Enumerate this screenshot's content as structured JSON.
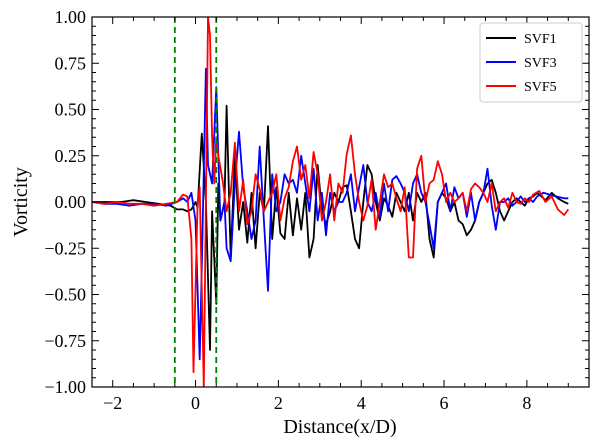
{
  "chart_data": {
    "type": "line",
    "title": "",
    "xlabel": "Distance(x/D)",
    "ylabel": "Vorticity",
    "xlim": [
      -2.5,
      9.5
    ],
    "ylim": [
      -1.0,
      1.0
    ],
    "xticks": [
      -2,
      0,
      2,
      4,
      6,
      8
    ],
    "xtick_labels": [
      "−2",
      "0",
      "2",
      "4",
      "6",
      "8"
    ],
    "yticks": [
      -1.0,
      -0.75,
      -0.5,
      -0.25,
      0.0,
      0.25,
      0.5,
      0.75,
      1.0
    ],
    "ytick_labels": [
      "−1.00",
      "−0.75",
      "−0.50",
      "−0.25",
      "0.00",
      "0.25",
      "0.50",
      "0.75",
      "1.00"
    ],
    "grid": false,
    "legend_position": "top-right",
    "vlines": [
      {
        "x": -0.5,
        "color": "#008000",
        "style": "dashed"
      },
      {
        "x": 0.5,
        "color": "#008000",
        "style": "dashed"
      }
    ],
    "series": [
      {
        "name": "SVF1",
        "color": "#000000",
        "points": [
          [
            -2.5,
            0.0
          ],
          [
            -2.2,
            0.0
          ],
          [
            -1.8,
            0.0
          ],
          [
            -1.5,
            0.01
          ],
          [
            -1.2,
            0.0
          ],
          [
            -0.9,
            -0.01
          ],
          [
            -0.6,
            -0.02
          ],
          [
            -0.45,
            -0.04
          ],
          [
            -0.3,
            -0.04
          ],
          [
            -0.2,
            -0.05
          ],
          [
            -0.1,
            -0.04
          ],
          [
            0.0,
            0.0
          ],
          [
            0.05,
            -0.03
          ],
          [
            0.15,
            0.37
          ],
          [
            0.25,
            0.0
          ],
          [
            0.35,
            -0.8
          ],
          [
            0.4,
            -0.05
          ],
          [
            0.5,
            -0.55
          ],
          [
            0.55,
            0.1
          ],
          [
            0.6,
            -0.1
          ],
          [
            0.7,
            0.0
          ],
          [
            0.75,
            0.52
          ],
          [
            0.85,
            -0.3
          ],
          [
            0.95,
            0.25
          ],
          [
            1.05,
            -0.15
          ],
          [
            1.15,
            0.0
          ],
          [
            1.25,
            -0.22
          ],
          [
            1.35,
            0.05
          ],
          [
            1.45,
            -0.25
          ],
          [
            1.55,
            0.05
          ],
          [
            1.65,
            -0.05
          ],
          [
            1.75,
            0.41
          ],
          [
            1.85,
            -0.2
          ],
          [
            1.95,
            0.08
          ],
          [
            2.05,
            -0.17
          ],
          [
            2.15,
            -0.2
          ],
          [
            2.25,
            0.05
          ],
          [
            2.35,
            -0.18
          ],
          [
            2.45,
            0.02
          ],
          [
            2.55,
            -0.15
          ],
          [
            2.65,
            0.05
          ],
          [
            2.75,
            -0.3
          ],
          [
            2.85,
            -0.2
          ],
          [
            2.95,
            0.2
          ],
          [
            3.05,
            -0.05
          ],
          [
            3.15,
            -0.12
          ],
          [
            3.25,
            -0.05
          ],
          [
            3.35,
            0.05
          ],
          [
            3.45,
            0.0
          ],
          [
            3.55,
            0.08
          ],
          [
            3.65,
            0.09
          ],
          [
            3.75,
            -0.05
          ],
          [
            3.85,
            -0.2
          ],
          [
            3.95,
            -0.25
          ],
          [
            4.05,
            0.0
          ],
          [
            4.15,
            0.2
          ],
          [
            4.25,
            0.15
          ],
          [
            4.35,
            0.0
          ],
          [
            4.45,
            -0.1
          ],
          [
            4.55,
            0.02
          ],
          [
            4.65,
            -0.02
          ],
          [
            4.75,
            -0.08
          ],
          [
            4.85,
            0.05
          ],
          [
            4.95,
            0.0
          ],
          [
            5.05,
            -0.05
          ],
          [
            5.15,
            0.05
          ],
          [
            5.25,
            -0.1
          ],
          [
            5.35,
            0.05
          ],
          [
            5.45,
            0.0
          ],
          [
            5.55,
            0.05
          ],
          [
            5.65,
            -0.2
          ],
          [
            5.75,
            -0.3
          ],
          [
            5.85,
            0.0
          ],
          [
            5.95,
            0.05
          ],
          [
            6.05,
            0.02
          ],
          [
            6.15,
            -0.05
          ],
          [
            6.25,
            0.0
          ],
          [
            6.35,
            -0.1
          ],
          [
            6.45,
            -0.12
          ],
          [
            6.55,
            -0.18
          ],
          [
            6.65,
            -0.15
          ],
          [
            6.75,
            -0.1
          ],
          [
            6.85,
            0.0
          ],
          [
            6.95,
            0.05
          ],
          [
            7.05,
            0.1
          ],
          [
            7.15,
            0.12
          ],
          [
            7.25,
            0.05
          ],
          [
            7.35,
            -0.05
          ],
          [
            7.45,
            -0.1
          ],
          [
            7.55,
            -0.05
          ],
          [
            7.65,
            0.0
          ],
          [
            7.75,
            0.02
          ],
          [
            7.85,
            0.0
          ],
          [
            7.95,
            -0.02
          ],
          [
            8.05,
            0.02
          ],
          [
            8.15,
            0.03
          ],
          [
            8.25,
            0.05
          ],
          [
            8.35,
            0.03
          ],
          [
            8.45,
            0.01
          ],
          [
            8.6,
            0.05
          ],
          [
            8.75,
            0.02
          ],
          [
            8.9,
            0.0
          ],
          [
            9.0,
            -0.01
          ]
        ]
      },
      {
        "name": "SVF3",
        "color": "#0000ff",
        "points": [
          [
            -2.5,
            0.0
          ],
          [
            -2.2,
            -0.01
          ],
          [
            -1.9,
            -0.01
          ],
          [
            -1.6,
            -0.02
          ],
          [
            -1.3,
            -0.01
          ],
          [
            -1.0,
            -0.01
          ],
          [
            -0.7,
            -0.02
          ],
          [
            -0.45,
            0.0
          ],
          [
            -0.3,
            0.02
          ],
          [
            -0.2,
            0.0
          ],
          [
            -0.1,
            0.05
          ],
          [
            0.0,
            -0.1
          ],
          [
            0.1,
            -0.85
          ],
          [
            0.15,
            -0.35
          ],
          [
            0.25,
            0.72
          ],
          [
            0.3,
            0.2
          ],
          [
            0.4,
            0.1
          ],
          [
            0.5,
            0.62
          ],
          [
            0.55,
            0.25
          ],
          [
            0.6,
            -0.1
          ],
          [
            0.7,
            0.0
          ],
          [
            0.75,
            -0.25
          ],
          [
            0.85,
            -0.32
          ],
          [
            0.95,
            0.1
          ],
          [
            1.05,
            0.38
          ],
          [
            1.15,
            0.08
          ],
          [
            1.25,
            -0.05
          ],
          [
            1.35,
            -0.2
          ],
          [
            1.45,
            -0.1
          ],
          [
            1.55,
            0.3
          ],
          [
            1.65,
            -0.1
          ],
          [
            1.75,
            -0.48
          ],
          [
            1.85,
            0.15
          ],
          [
            1.95,
            -0.05
          ],
          [
            2.05,
            0.0
          ],
          [
            2.15,
            0.15
          ],
          [
            2.25,
            0.1
          ],
          [
            2.35,
            0.12
          ],
          [
            2.45,
            0.05
          ],
          [
            2.55,
            0.25
          ],
          [
            2.65,
            0.1
          ],
          [
            2.75,
            -0.05
          ],
          [
            2.85,
            0.18
          ],
          [
            2.95,
            -0.1
          ],
          [
            3.05,
            0.05
          ],
          [
            3.15,
            -0.18
          ],
          [
            3.25,
            0.05
          ],
          [
            3.35,
            -0.05
          ],
          [
            3.45,
            0.0
          ],
          [
            3.55,
            0.0
          ],
          [
            3.65,
            0.05
          ],
          [
            3.75,
            0.15
          ],
          [
            3.85,
            -0.05
          ],
          [
            3.95,
            0.08
          ],
          [
            4.05,
            0.2
          ],
          [
            4.15,
            0.0
          ],
          [
            4.25,
            -0.05
          ],
          [
            4.35,
            0.05
          ],
          [
            4.45,
            -0.08
          ],
          [
            4.55,
            0.1
          ],
          [
            4.65,
            -0.05
          ],
          [
            4.75,
            0.12
          ],
          [
            4.85,
            0.14
          ],
          [
            4.95,
            0.1
          ],
          [
            5.05,
            0.05
          ],
          [
            5.15,
            -0.05
          ],
          [
            5.25,
            0.1
          ],
          [
            5.35,
            0.15
          ],
          [
            5.45,
            0.05
          ],
          [
            5.55,
            0.0
          ],
          [
            5.65,
            -0.12
          ],
          [
            5.75,
            -0.25
          ],
          [
            5.85,
            0.0
          ],
          [
            5.95,
            0.05
          ],
          [
            6.05,
            0.1
          ],
          [
            6.15,
            -0.05
          ],
          [
            6.25,
            0.08
          ],
          [
            6.35,
            0.02
          ],
          [
            6.45,
            0.05
          ],
          [
            6.55,
            -0.08
          ],
          [
            6.65,
            0.05
          ],
          [
            6.75,
            -0.1
          ],
          [
            6.85,
            0.0
          ],
          [
            6.95,
            0.05
          ],
          [
            7.05,
            0.18
          ],
          [
            7.15,
            -0.02
          ],
          [
            7.25,
            -0.15
          ],
          [
            7.35,
            0.0
          ],
          [
            7.45,
            0.0
          ],
          [
            7.55,
            0.02
          ],
          [
            7.65,
            -0.02
          ],
          [
            7.75,
            0.0
          ],
          [
            7.85,
            0.03
          ],
          [
            7.95,
            0.0
          ],
          [
            8.05,
            0.02
          ],
          [
            8.15,
            0.0
          ],
          [
            8.25,
            0.03
          ],
          [
            8.4,
            0.05
          ],
          [
            8.55,
            0.04
          ],
          [
            8.7,
            0.03
          ],
          [
            8.9,
            0.02
          ],
          [
            9.0,
            0.02
          ]
        ]
      },
      {
        "name": "SVF5",
        "color": "#ff0000",
        "points": [
          [
            -2.5,
            0.0
          ],
          [
            -2.2,
            -0.01
          ],
          [
            -1.9,
            0.0
          ],
          [
            -1.6,
            -0.01
          ],
          [
            -1.3,
            -0.01
          ],
          [
            -1.0,
            -0.02
          ],
          [
            -0.7,
            -0.01
          ],
          [
            -0.45,
            0.0
          ],
          [
            -0.3,
            0.04
          ],
          [
            -0.2,
            0.03
          ],
          [
            -0.1,
            -0.2
          ],
          [
            -0.05,
            -0.92
          ],
          [
            0.05,
            0.0
          ],
          [
            0.1,
            0.08
          ],
          [
            0.2,
            -1.0
          ],
          [
            0.3,
            1.0
          ],
          [
            0.35,
            0.9
          ],
          [
            0.4,
            0.35
          ],
          [
            0.45,
            0.1
          ],
          [
            0.5,
            0.35
          ],
          [
            0.55,
            0.25
          ],
          [
            0.65,
            0.12
          ],
          [
            0.75,
            -0.05
          ],
          [
            0.85,
            0.05
          ],
          [
            0.95,
            0.32
          ],
          [
            1.05,
            -0.05
          ],
          [
            1.15,
            0.12
          ],
          [
            1.25,
            -0.12
          ],
          [
            1.35,
            -0.05
          ],
          [
            1.45,
            0.15
          ],
          [
            1.55,
            0.07
          ],
          [
            1.65,
            -0.05
          ],
          [
            1.75,
            0.0
          ],
          [
            1.85,
            0.05
          ],
          [
            1.95,
            0.15
          ],
          [
            2.05,
            -0.1
          ],
          [
            2.15,
            0.02
          ],
          [
            2.25,
            0.08
          ],
          [
            2.35,
            0.22
          ],
          [
            2.45,
            0.3
          ],
          [
            2.55,
            0.12
          ],
          [
            2.65,
            0.2
          ],
          [
            2.75,
            0.02
          ],
          [
            2.85,
            0.27
          ],
          [
            2.95,
            0.15
          ],
          [
            3.05,
            -0.1
          ],
          [
            3.15,
            0.0
          ],
          [
            3.25,
            0.15
          ],
          [
            3.35,
            -0.1
          ],
          [
            3.45,
            0.1
          ],
          [
            3.55,
            0.05
          ],
          [
            3.65,
            0.26
          ],
          [
            3.75,
            0.36
          ],
          [
            3.85,
            0.15
          ],
          [
            3.95,
            0.0
          ],
          [
            4.05,
            -0.1
          ],
          [
            4.15,
            -0.02
          ],
          [
            4.25,
            0.12
          ],
          [
            4.35,
            -0.15
          ],
          [
            4.45,
            0.0
          ],
          [
            4.55,
            0.15
          ],
          [
            4.65,
            0.08
          ],
          [
            4.75,
            0.1
          ],
          [
            4.85,
            0.02
          ],
          [
            4.95,
            -0.05
          ],
          [
            5.05,
            0.08
          ],
          [
            5.15,
            -0.3
          ],
          [
            5.25,
            -0.3
          ],
          [
            5.35,
            0.18
          ],
          [
            5.45,
            0.25
          ],
          [
            5.55,
            0.0
          ],
          [
            5.65,
            0.1
          ],
          [
            5.75,
            0.12
          ],
          [
            5.85,
            0.22
          ],
          [
            5.95,
            0.15
          ],
          [
            6.05,
            0.0
          ],
          [
            6.15,
            0.05
          ],
          [
            6.25,
            0.0
          ],
          [
            6.35,
            0.02
          ],
          [
            6.45,
            0.05
          ],
          [
            6.55,
            -0.05
          ],
          [
            6.65,
            0.07
          ],
          [
            6.75,
            0.1
          ],
          [
            6.85,
            0.08
          ],
          [
            6.95,
            0.05
          ],
          [
            7.05,
            0.0
          ],
          [
            7.15,
            0.1
          ],
          [
            7.25,
            -0.05
          ],
          [
            7.35,
            0.0
          ],
          [
            7.45,
            0.02
          ],
          [
            7.55,
            -0.03
          ],
          [
            7.65,
            0.05
          ],
          [
            7.75,
            0.0
          ],
          [
            7.85,
            -0.01
          ],
          [
            7.95,
            0.02
          ],
          [
            8.05,
            0.0
          ],
          [
            8.15,
            0.04
          ],
          [
            8.3,
            0.06
          ],
          [
            8.45,
            0.0
          ],
          [
            8.6,
            0.03
          ],
          [
            8.75,
            -0.04
          ],
          [
            8.9,
            -0.07
          ],
          [
            9.0,
            -0.04
          ]
        ]
      }
    ]
  }
}
